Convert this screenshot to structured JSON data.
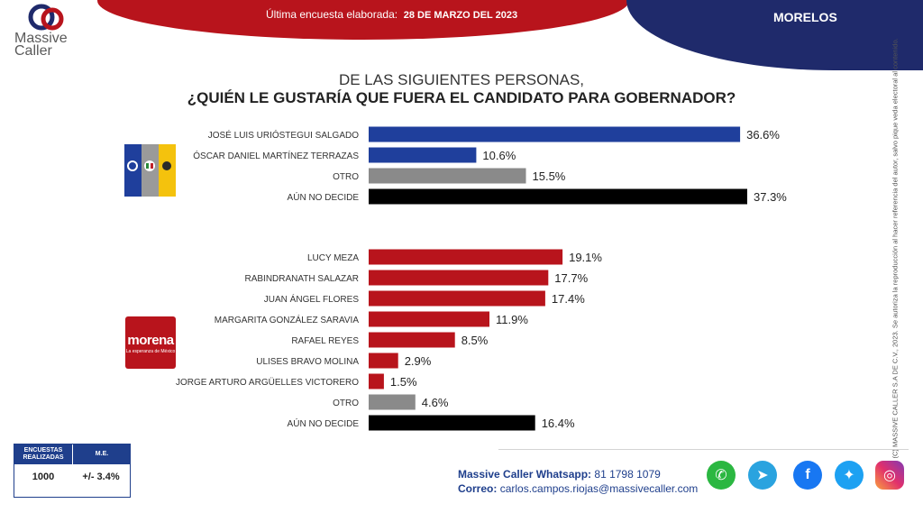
{
  "header": {
    "survey_label": "Última encuesta elaborada:",
    "survey_date": "28 DE MARZO DEL 2023",
    "state": "MORELOS"
  },
  "brand": {
    "line1": "Massive",
    "line2": "Caller"
  },
  "title": {
    "line1": "DE LAS SIGUIENTES  PERSONAS,",
    "line2": "¿QUIÉN LE GUSTARÍA QUE FUERA EL CANDIDATO  PARA GOBERNADOR?"
  },
  "colors": {
    "blue": "#1f3f9c",
    "red": "#b8141c",
    "gray": "#8a8a8a",
    "black": "#000000"
  },
  "chart_data": {
    "type": "bar",
    "orientation": "horizontal",
    "groups": [
      {
        "logo": "pan-pri-prd-logo",
        "categories": [
          "JOSÉ LUIS URIÓSTEGUI SALGADO",
          "ÓSCAR DANIEL MARTÍNEZ TERRAZAS",
          "OTRO",
          "AÚN NO DECIDE"
        ],
        "values": [
          36.6,
          10.6,
          15.5,
          37.3
        ],
        "labels": [
          "36.6%",
          "10.6%",
          "15.5%",
          "37.3%"
        ],
        "colors": [
          "#1f3f9c",
          "#1f3f9c",
          "#8a8a8a",
          "#000000"
        ]
      },
      {
        "logo": "morena-logo",
        "categories": [
          "LUCY MEZA",
          "RABINDRANATH SALAZAR",
          "JUAN ÁNGEL FLORES",
          "MARGARITA GONZÁLEZ SARAVIA",
          "RAFAEL REYES",
          "ULISES BRAVO MOLINA",
          "JORGE ARTURO ARGÜELLES VICTORERO",
          "OTRO",
          "AÚN NO DECIDE"
        ],
        "values": [
          19.1,
          17.7,
          17.4,
          11.9,
          8.5,
          2.9,
          1.5,
          4.6,
          16.4
        ],
        "labels": [
          "19.1%",
          "17.7%",
          "17.4%",
          "11.9%",
          "8.5%",
          "2.9%",
          "1.5%",
          "4.6%",
          "16.4%"
        ],
        "colors": [
          "#b8141c",
          "#b8141c",
          "#b8141c",
          "#b8141c",
          "#b8141c",
          "#b8141c",
          "#b8141c",
          "#8a8a8a",
          "#000000"
        ]
      }
    ],
    "xlim": [
      0,
      37.3
    ],
    "grid": false,
    "legend": "none"
  },
  "morena": {
    "name": "morena",
    "tagline": "La esperanza de México"
  },
  "side_note": "D.R., (C) MASSIVE CALLER S.A DE C.V., 2023. Se autoriza la reproducción al hacer referencia del autor, salvo pique veda electoral al contenido.",
  "stats": {
    "surveys_label": "ENCUESTAS REALIZADAS",
    "me_label": "M.E.",
    "surveys_value": "1000",
    "me_value": "+/- 3.4%"
  },
  "contact": {
    "whatsapp_label": "Massive Caller Whatsapp:",
    "whatsapp_number": "81 1798 1079",
    "email_label": "Correo:",
    "email": "carlos.campos.riojas@massivecaller.com"
  },
  "social_icons": [
    "whatsapp-icon",
    "telegram-icon",
    "facebook-icon",
    "twitter-icon",
    "instagram-icon"
  ]
}
